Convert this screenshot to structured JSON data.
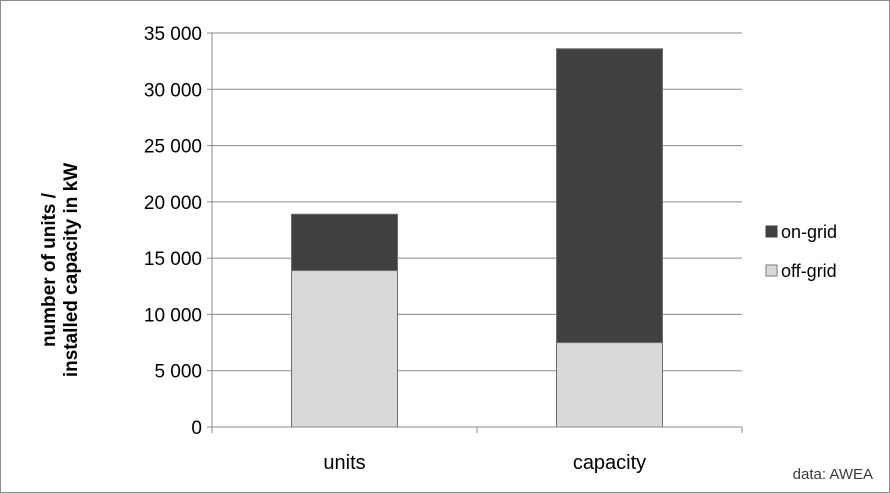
{
  "chart_data": {
    "type": "bar",
    "stacked": true,
    "categories": [
      "units",
      "capacity"
    ],
    "series": [
      {
        "name": "off-grid",
        "values": [
          13900,
          7500
        ],
        "color": "#d9d9d9"
      },
      {
        "name": "on-grid",
        "values": [
          5000,
          26100
        ],
        "color": "#404040"
      }
    ],
    "ylabel_lines": [
      "number of units /",
      "installed capacity in kW"
    ],
    "ylim": [
      0,
      35000
    ],
    "yticks": [
      0,
      5000,
      10000,
      15000,
      20000,
      25000,
      30000,
      35000
    ],
    "ytick_labels": [
      "0",
      "5 000",
      "10 000",
      "15 000",
      "20 000",
      "25 000",
      "30 000",
      "35 000"
    ],
    "grid": true,
    "legend_position": "right",
    "source_note": "data: AWEA"
  }
}
